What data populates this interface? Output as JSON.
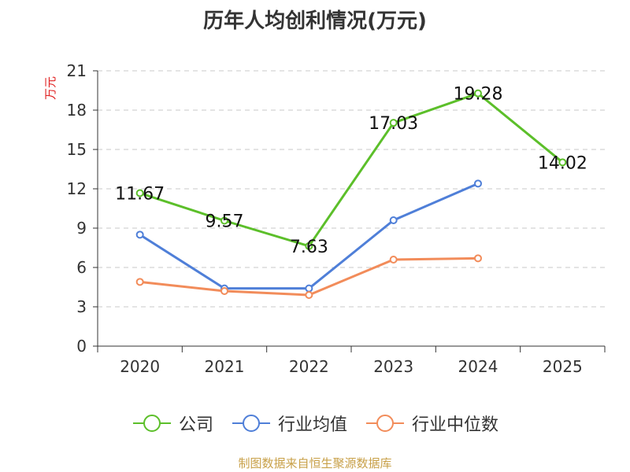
{
  "chart_data": {
    "type": "line",
    "title": "历年人均创利情况(万元)",
    "ylabel": "万元",
    "xlabel": "",
    "categories": [
      "2020",
      "2021",
      "2022",
      "2023",
      "2024",
      "2025"
    ],
    "ylim": [
      0,
      21
    ],
    "yticks": [
      "0",
      "3",
      "6",
      "9",
      "12",
      "15",
      "18",
      "21"
    ],
    "grid": "horizontal dashed",
    "legend_position": "bottom",
    "series": [
      {
        "name": "公司",
        "color": "#5cbf2a",
        "values": [
          11.67,
          9.57,
          7.63,
          17.03,
          19.28,
          14.02
        ],
        "data_labels": [
          "11.67",
          "9.57",
          "7.63",
          "17.03",
          "19.28",
          "14.02"
        ]
      },
      {
        "name": "行业均值",
        "color": "#4f7fd8",
        "values": [
          8.5,
          4.4,
          4.4,
          9.6,
          12.4,
          null
        ]
      },
      {
        "name": "行业中位数",
        "color": "#f28c5a",
        "values": [
          4.9,
          4.2,
          3.9,
          6.6,
          6.7,
          null
        ]
      }
    ]
  },
  "footer": {
    "source": "制图数据来自恒生聚源数据库"
  }
}
